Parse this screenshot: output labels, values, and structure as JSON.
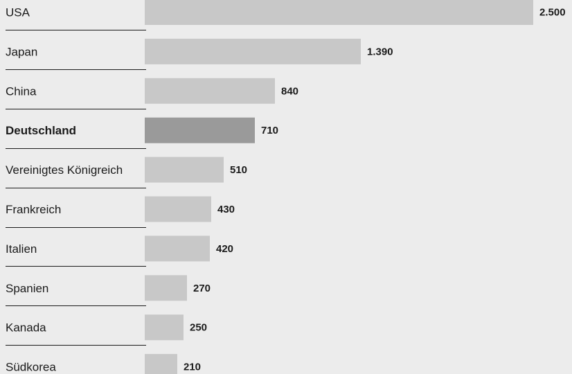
{
  "chart_data": {
    "type": "bar",
    "orientation": "horizontal",
    "categories": [
      "USA",
      "Japan",
      "China",
      "Deutschland",
      "Vereinigtes Königreich",
      "Frankreich",
      "Italien",
      "Spanien",
      "Kanada",
      "Südkorea"
    ],
    "values": [
      2500,
      1390,
      840,
      710,
      510,
      430,
      420,
      270,
      250,
      210
    ],
    "value_labels": [
      "2.500",
      "1.390",
      "840",
      "710",
      "510",
      "430",
      "420",
      "270",
      "250",
      "210"
    ],
    "highlight": "Deutschland",
    "title": "",
    "xlabel": "",
    "ylabel": "",
    "xlim": [
      0,
      2500
    ],
    "grid": false,
    "colors": {
      "bar": "#c8c8c8",
      "highlight_bar": "#9a9a9a",
      "separator": "#1a1a1a",
      "background": "#ececec"
    }
  }
}
